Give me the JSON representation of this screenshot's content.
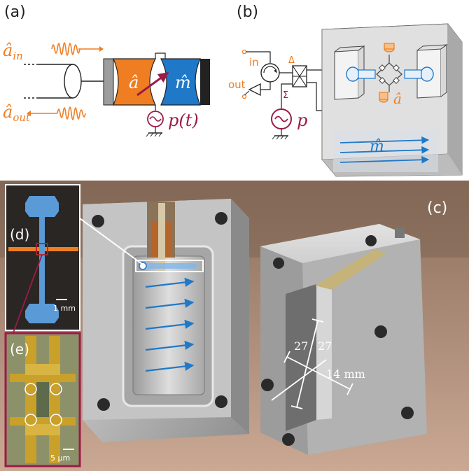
{
  "panels": {
    "a": "(a)",
    "b": "(b)",
    "c": "(c)",
    "d": "(d)",
    "e": "(e)"
  },
  "panel_a": {
    "input_label": "â",
    "input_sub": "in",
    "output_label": "â",
    "output_sub": "out",
    "cavity_mode": "â",
    "magnon_mode": "m̂",
    "pump_label": "p(t)"
  },
  "panel_b": {
    "in_label": "in",
    "out_label": "out",
    "delta": "Δ",
    "sigma": "Σ",
    "pump_label": "p",
    "cavity_mode": "â",
    "magnon_mode": "m̂"
  },
  "panel_c": {
    "dim_a": "27",
    "dim_b": "27",
    "dim_c": "14 mm"
  },
  "panel_d": {
    "scale": "1 mm"
  },
  "panel_e": {
    "scale": "5 μm"
  },
  "colors": {
    "orange": "#ef7d22",
    "blue": "#1f78c8",
    "maroon": "#9b1b46",
    "metal": "#b9b9b9"
  }
}
